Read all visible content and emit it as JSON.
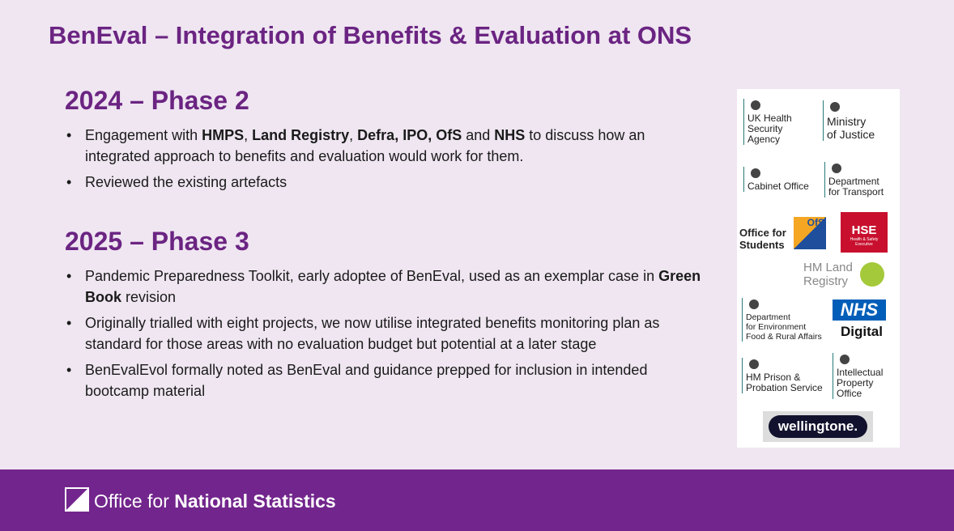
{
  "title": "BenEval – Integration of Benefits & Evaluation at ONS",
  "sections": [
    {
      "heading": "2024 – Phase 2",
      "bullets": [
        [
          {
            "text": "Engagement with "
          },
          {
            "text": "HMPS",
            "bold": true
          },
          {
            "text": ", "
          },
          {
            "text": "Land Registry",
            "bold": true
          },
          {
            "text": ", "
          },
          {
            "text": "Defra, IPO, OfS",
            "bold": true
          },
          {
            "text": " and "
          },
          {
            "text": "NHS",
            "bold": true
          },
          {
            "text": " to discuss how an integrated approach to benefits and evaluation would work for them."
          }
        ],
        [
          {
            "text": "Reviewed the existing artefacts"
          }
        ]
      ]
    },
    {
      "heading": "2025 – Phase 3",
      "bullets": [
        [
          {
            "text": "Pandemic Preparedness Toolkit, early adoptee of BenEval, used as an exemplar case in "
          },
          {
            "text": "Green Book",
            "bold": true
          },
          {
            "text": " revision"
          }
        ],
        [
          {
            "text": "Originally trialled with eight projects, we now utilise integrated benefits monitoring plan as standard for those areas with no evaluation budget but potential at a later stage"
          }
        ],
        [
          {
            "text": "BenEvalEvol formally noted as BenEval and guidance prepped for inclusion in intended bootcamp material"
          }
        ]
      ]
    }
  ],
  "logos": [
    {
      "lines": [
        "UK Health",
        "Security",
        "Agency"
      ]
    },
    {
      "lines": [
        "Ministry",
        "of Justice"
      ]
    },
    {
      "lines": [
        "Cabinet Office"
      ]
    },
    {
      "lines": [
        "Department",
        "for Transport"
      ]
    },
    {
      "lines": [
        "Office for",
        "Students"
      ],
      "badge": "OfS"
    },
    {
      "lines": [
        "Health & Safety",
        "Executive"
      ],
      "badge": "HSE"
    },
    {
      "lines": [
        "HM Land",
        "Registry"
      ]
    },
    {
      "lines": [
        "Department",
        "for Environment",
        "Food & Rural Affairs"
      ]
    },
    {
      "lines": [
        "Digital"
      ],
      "badge": "NHS"
    },
    {
      "lines": [
        "HM Prison &",
        "Probation Service"
      ]
    },
    {
      "lines": [
        "Intellectual",
        "Property",
        "Office"
      ]
    },
    {
      "lines": [
        "wellingtone."
      ]
    }
  ],
  "footer": {
    "logo_text": [
      {
        "text": "Office for "
      },
      {
        "text": "National Statistics",
        "bold": true
      }
    ]
  }
}
